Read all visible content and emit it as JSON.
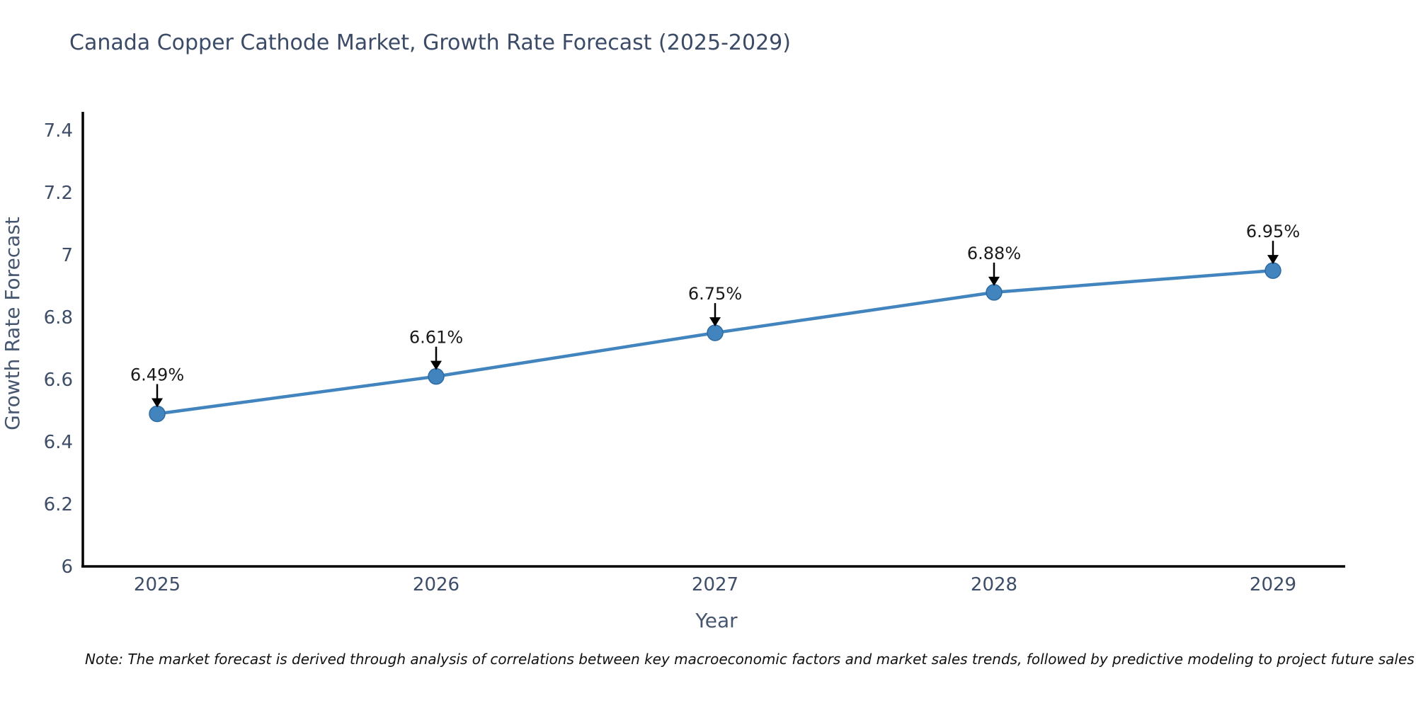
{
  "chart_data": {
    "type": "line",
    "title": "Canada Copper Cathode Market, Growth Rate Forecast (2025-2029)",
    "xlabel": "Year",
    "ylabel": "Growth Rate Forecast",
    "note": "Note: The market forecast is derived through analysis of correlations between key macroeconomic factors and market sales trends, followed by predictive modeling to project future sales",
    "categories": [
      "2025",
      "2026",
      "2027",
      "2028",
      "2029"
    ],
    "x": [
      2025,
      2026,
      2027,
      2028,
      2029
    ],
    "values": [
      6.49,
      6.61,
      6.75,
      6.88,
      6.95
    ],
    "point_labels": [
      "6.49%",
      "6.61%",
      "6.75%",
      "6.88%",
      "6.95%"
    ],
    "y_ticks": [
      6,
      6.2,
      6.4,
      6.6,
      6.8,
      7,
      7.2,
      7.4
    ],
    "ylim": [
      6,
      7.455
    ],
    "grid": false,
    "legend": "none",
    "colors": {
      "line": "#4184BE",
      "marker_fill": "#4184BE",
      "marker_edge": "#2F6BA3",
      "annotation_arrow": "#000000",
      "annotation_text": "#1A1A1A",
      "axis_line": "#000000",
      "tick_label": "#3E4E68",
      "title_text": "#3B4A66"
    }
  }
}
